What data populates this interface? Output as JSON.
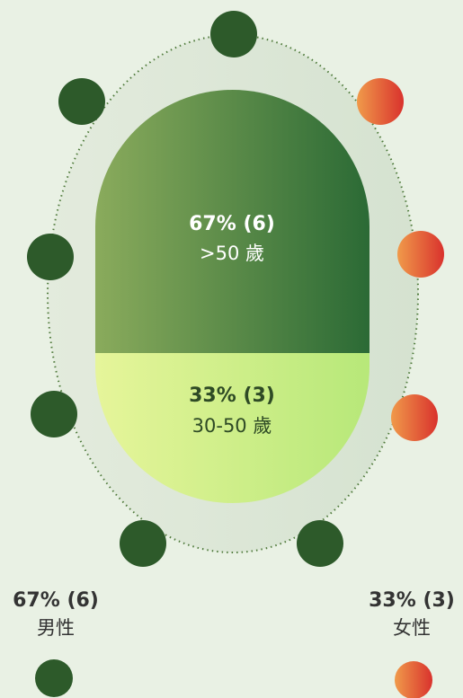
{
  "capsule": {
    "top": {
      "share": "67% (6)",
      "label": ">50 歲"
    },
    "bottom": {
      "share": "33% (3)",
      "label": "30-50 歲"
    }
  },
  "legend": [
    {
      "share": "67% (6)",
      "label": "男性"
    },
    {
      "share": "33% (3)",
      "label": "女性"
    }
  ]
}
